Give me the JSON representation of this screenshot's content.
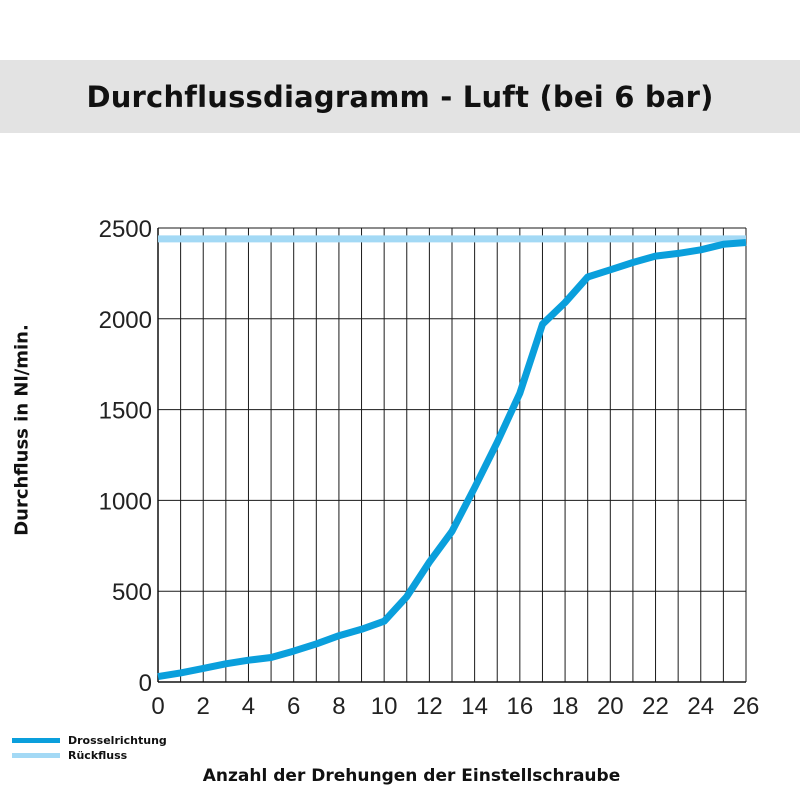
{
  "title": "Durchflussdiagramm - Luft (bei 6 bar)",
  "chart_data": {
    "type": "line",
    "title": "Durchflussdiagramm - Luft (bei 6 bar)",
    "xlabel": "Anzahl der Drehungen der Einstellschraube",
    "ylabel": "Durchfluss in Nl/min.",
    "xlim": [
      0,
      26
    ],
    "ylim": [
      0,
      2500
    ],
    "xticks": [
      0,
      2,
      4,
      6,
      8,
      10,
      12,
      14,
      16,
      18,
      20,
      22,
      24,
      26
    ],
    "yticks": [
      0,
      500,
      1000,
      1500,
      2000,
      2500
    ],
    "xtick_labels": [
      "0",
      "2",
      "4",
      "6",
      "8",
      "10",
      "12",
      "14",
      "16",
      "18",
      "20",
      "22",
      "24",
      "26"
    ],
    "ytick_labels": [
      "0",
      "500",
      "1000",
      "1500",
      "2000",
      "2500"
    ],
    "grid": true,
    "legend_position": "bottom-left",
    "series": [
      {
        "name": "Drosselrichtung",
        "color": "#0a9fdc",
        "x": [
          0,
          1,
          2,
          3,
          4,
          5,
          6,
          7,
          8,
          9,
          10,
          11,
          12,
          13,
          14,
          15,
          16,
          17,
          18,
          19,
          20,
          21,
          22,
          23,
          24,
          25,
          26
        ],
        "y": [
          30,
          50,
          75,
          100,
          120,
          135,
          170,
          210,
          255,
          290,
          335,
          470,
          660,
          830,
          1070,
          1320,
          1590,
          1970,
          2090,
          2230,
          2270,
          2310,
          2345,
          2360,
          2380,
          2410,
          2420
        ]
      },
      {
        "name": "Rückfluss",
        "color": "#a3d9f5",
        "x": [
          0,
          26
        ],
        "y": [
          2440,
          2440
        ]
      }
    ]
  }
}
